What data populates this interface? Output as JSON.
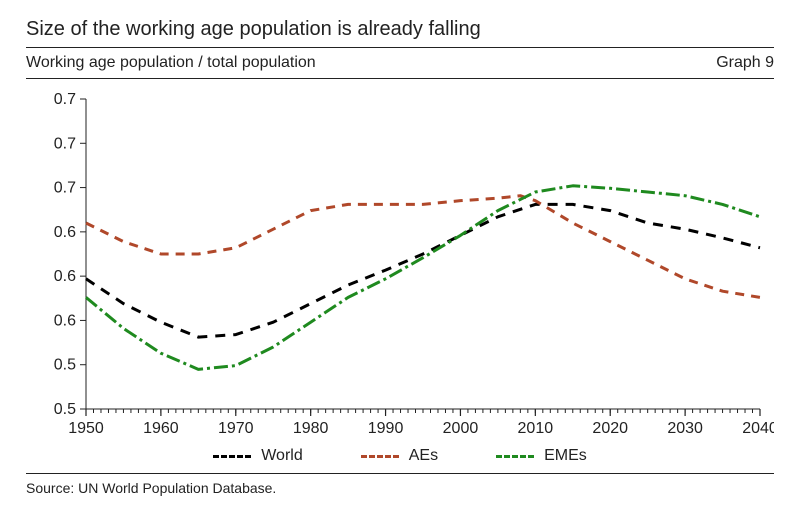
{
  "title": "Size of the working age population is already falling",
  "subtitle": "Working age population / total population",
  "graph_label": "Graph 9",
  "source": "Source: UN World Population Database.",
  "chart": {
    "type": "line",
    "background_color": "#ffffff",
    "axis_color": "#222222",
    "tick_color": "#222222",
    "tick_fontsize": 16,
    "line_width": 3,
    "x": {
      "min": 1950,
      "max": 2040,
      "ticks": [
        1950,
        1960,
        1970,
        1980,
        1990,
        2000,
        2010,
        2020,
        2030,
        2040
      ],
      "minor_tick_step": 1
    },
    "y": {
      "min": 0.5,
      "max_visual": 0.75,
      "ticks": [
        0.5,
        0.5,
        0.6,
        0.6,
        0.6,
        0.7,
        0.7,
        0.7
      ]
    },
    "series": [
      {
        "name": "World",
        "color": "#000000",
        "dash": "10,8",
        "points": [
          [
            1950,
            0.605
          ],
          [
            1955,
            0.585
          ],
          [
            1960,
            0.57
          ],
          [
            1965,
            0.558
          ],
          [
            1970,
            0.56
          ],
          [
            1975,
            0.57
          ],
          [
            1980,
            0.585
          ],
          [
            1985,
            0.6
          ],
          [
            1990,
            0.612
          ],
          [
            1995,
            0.625
          ],
          [
            2000,
            0.64
          ],
          [
            2005,
            0.655
          ],
          [
            2010,
            0.665
          ],
          [
            2015,
            0.665
          ],
          [
            2020,
            0.66
          ],
          [
            2025,
            0.65
          ],
          [
            2030,
            0.645
          ],
          [
            2035,
            0.638
          ],
          [
            2040,
            0.63
          ]
        ]
      },
      {
        "name": "AEs",
        "color": "#b0482a",
        "dash": "9,7",
        "points": [
          [
            1950,
            0.65
          ],
          [
            1955,
            0.635
          ],
          [
            1960,
            0.625
          ],
          [
            1965,
            0.625
          ],
          [
            1970,
            0.63
          ],
          [
            1975,
            0.645
          ],
          [
            1980,
            0.66
          ],
          [
            1985,
            0.665
          ],
          [
            1990,
            0.665
          ],
          [
            1995,
            0.665
          ],
          [
            2000,
            0.668
          ],
          [
            2005,
            0.67
          ],
          [
            2008,
            0.672
          ],
          [
            2010,
            0.668
          ],
          [
            2015,
            0.65
          ],
          [
            2020,
            0.635
          ],
          [
            2025,
            0.62
          ],
          [
            2030,
            0.605
          ],
          [
            2035,
            0.595
          ],
          [
            2040,
            0.59
          ]
        ]
      },
      {
        "name": "EMEs",
        "color": "#1f8a1f",
        "dash": "14,4,3,4",
        "points": [
          [
            1950,
            0.59
          ],
          [
            1955,
            0.565
          ],
          [
            1960,
            0.545
          ],
          [
            1965,
            0.532
          ],
          [
            1970,
            0.535
          ],
          [
            1975,
            0.55
          ],
          [
            1980,
            0.57
          ],
          [
            1985,
            0.59
          ],
          [
            1990,
            0.605
          ],
          [
            1995,
            0.622
          ],
          [
            2000,
            0.64
          ],
          [
            2005,
            0.66
          ],
          [
            2010,
            0.675
          ],
          [
            2015,
            0.68
          ],
          [
            2020,
            0.678
          ],
          [
            2025,
            0.675
          ],
          [
            2030,
            0.672
          ],
          [
            2035,
            0.665
          ],
          [
            2040,
            0.655
          ]
        ]
      }
    ],
    "legend": {
      "items": [
        {
          "label": "World",
          "color": "#000000",
          "dash_css": "dashed"
        },
        {
          "label": "AEs",
          "color": "#b0482a",
          "dash_css": "dashed"
        },
        {
          "label": "EMEs",
          "color": "#1f8a1f",
          "dash_css": "dashed"
        }
      ]
    }
  }
}
